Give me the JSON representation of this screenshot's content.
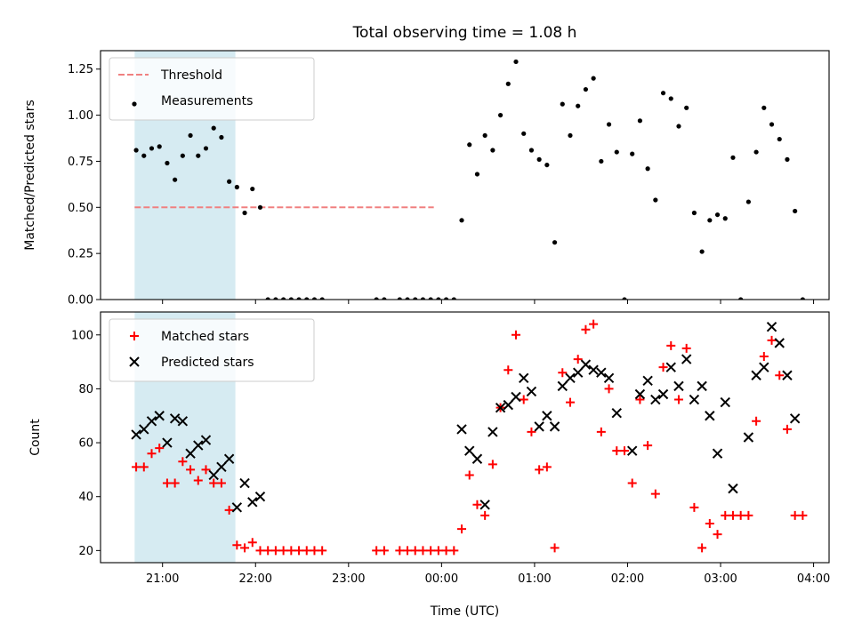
{
  "chart_data": [
    {
      "type": "scatter",
      "panel": "top",
      "title": "Total observing time = 1.08 h",
      "ylabel": "Matched/Predicted stars",
      "xlabel": "",
      "ylim": [
        0,
        1.35
      ],
      "yticks": [
        0.0,
        0.25,
        0.5,
        0.75,
        1.0,
        1.25
      ],
      "ytick_labels": [
        "0.00",
        "0.25",
        "0.50",
        "0.75",
        "1.00",
        "1.25"
      ],
      "shaded_span": {
        "start": "20:42",
        "end": "21:47"
      },
      "threshold": {
        "name": "Threshold",
        "value": 0.5,
        "start": "20:42",
        "end": "23:55",
        "color": "#f08080"
      },
      "legend_position": "upper-left",
      "series": [
        {
          "name": "Measurements",
          "color": "#000000",
          "marker": "dot",
          "points": [
            [
              "20:43",
              0.81
            ],
            [
              "20:48",
              0.78
            ],
            [
              "20:53",
              0.82
            ],
            [
              "20:58",
              0.83
            ],
            [
              "21:03",
              0.74
            ],
            [
              "21:08",
              0.65
            ],
            [
              "21:13",
              0.78
            ],
            [
              "21:18",
              0.89
            ],
            [
              "21:23",
              0.78
            ],
            [
              "21:28",
              0.82
            ],
            [
              "21:33",
              0.93
            ],
            [
              "21:38",
              0.88
            ],
            [
              "21:43",
              0.64
            ],
            [
              "21:48",
              0.61
            ],
            [
              "21:53",
              0.47
            ],
            [
              "21:58",
              0.6
            ],
            [
              "22:03",
              0.5
            ],
            [
              "22:08",
              0.0
            ],
            [
              "22:13",
              0.0
            ],
            [
              "22:18",
              0.0
            ],
            [
              "22:23",
              0.0
            ],
            [
              "22:28",
              0.0
            ],
            [
              "22:33",
              0.0
            ],
            [
              "22:38",
              0.0
            ],
            [
              "22:43",
              0.0
            ],
            [
              "23:18",
              0.0
            ],
            [
              "23:23",
              0.0
            ],
            [
              "23:33",
              0.0
            ],
            [
              "23:38",
              0.0
            ],
            [
              "23:43",
              0.0
            ],
            [
              "23:48",
              0.0
            ],
            [
              "23:53",
              0.0
            ],
            [
              "23:58",
              0.0
            ],
            [
              "00:03",
              0.0
            ],
            [
              "00:08",
              0.0
            ],
            [
              "00:13",
              0.43
            ],
            [
              "00:18",
              0.84
            ],
            [
              "00:23",
              0.68
            ],
            [
              "00:28",
              0.89
            ],
            [
              "00:33",
              0.81
            ],
            [
              "00:38",
              1.0
            ],
            [
              "00:43",
              1.17
            ],
            [
              "00:48",
              1.29
            ],
            [
              "00:53",
              0.9
            ],
            [
              "00:58",
              0.81
            ],
            [
              "01:03",
              0.76
            ],
            [
              "01:08",
              0.73
            ],
            [
              "01:13",
              0.31
            ],
            [
              "01:18",
              1.06
            ],
            [
              "01:23",
              0.89
            ],
            [
              "01:28",
              1.05
            ],
            [
              "01:33",
              1.14
            ],
            [
              "01:38",
              1.2
            ],
            [
              "01:43",
              0.75
            ],
            [
              "01:48",
              0.95
            ],
            [
              "01:53",
              0.8
            ],
            [
              "01:58",
              0.0
            ],
            [
              "02:03",
              0.79
            ],
            [
              "02:08",
              0.97
            ],
            [
              "02:13",
              0.71
            ],
            [
              "02:18",
              0.54
            ],
            [
              "02:23",
              1.12
            ],
            [
              "02:28",
              1.09
            ],
            [
              "02:33",
              0.94
            ],
            [
              "02:38",
              1.04
            ],
            [
              "02:43",
              0.47
            ],
            [
              "02:48",
              0.26
            ],
            [
              "02:53",
              0.43
            ],
            [
              "02:58",
              0.46
            ],
            [
              "03:03",
              0.44
            ],
            [
              "03:08",
              0.77
            ],
            [
              "03:13",
              0.0
            ],
            [
              "03:18",
              0.53
            ],
            [
              "03:23",
              0.8
            ],
            [
              "03:28",
              1.04
            ],
            [
              "03:33",
              0.95
            ],
            [
              "03:38",
              0.87
            ],
            [
              "03:43",
              0.76
            ],
            [
              "03:48",
              0.48
            ],
            [
              "03:53",
              0.0
            ]
          ]
        }
      ]
    },
    {
      "type": "scatter",
      "panel": "bottom",
      "title": "",
      "ylabel": "Count",
      "xlabel": "Time (UTC)",
      "ylim": [
        15.5,
        108.5
      ],
      "yticks": [
        20,
        40,
        60,
        80,
        100
      ],
      "ytick_labels": [
        "20",
        "40",
        "60",
        "80",
        "100"
      ],
      "xlim": [
        "20:20",
        "04:10"
      ],
      "xticks": [
        "21:00",
        "22:00",
        "23:00",
        "00:00",
        "01:00",
        "02:00",
        "03:00",
        "04:00"
      ],
      "xtick_labels": [
        "21:00",
        "22:00",
        "23:00",
        "00:00",
        "01:00",
        "02:00",
        "03:00",
        "04:00"
      ],
      "shaded_span": {
        "start": "20:42",
        "end": "21:47"
      },
      "legend_position": "upper-left",
      "series": [
        {
          "name": "Matched stars",
          "color": "#ff0000",
          "marker": "plus",
          "points": [
            [
              "20:43",
              51
            ],
            [
              "20:48",
              51
            ],
            [
              "20:53",
              56
            ],
            [
              "20:58",
              58
            ],
            [
              "21:03",
              45
            ],
            [
              "21:08",
              45
            ],
            [
              "21:13",
              53
            ],
            [
              "21:18",
              50
            ],
            [
              "21:23",
              46
            ],
            [
              "21:28",
              50
            ],
            [
              "21:33",
              45
            ],
            [
              "21:38",
              45
            ],
            [
              "21:43",
              35
            ],
            [
              "21:48",
              22
            ],
            [
              "21:53",
              21
            ],
            [
              "21:58",
              23
            ],
            [
              "22:03",
              20
            ],
            [
              "22:08",
              20
            ],
            [
              "22:13",
              20
            ],
            [
              "22:18",
              20
            ],
            [
              "22:23",
              20
            ],
            [
              "22:28",
              20
            ],
            [
              "22:33",
              20
            ],
            [
              "22:38",
              20
            ],
            [
              "22:43",
              20
            ],
            [
              "23:18",
              20
            ],
            [
              "23:23",
              20
            ],
            [
              "23:33",
              20
            ],
            [
              "23:38",
              20
            ],
            [
              "23:43",
              20
            ],
            [
              "23:48",
              20
            ],
            [
              "23:53",
              20
            ],
            [
              "23:58",
              20
            ],
            [
              "00:03",
              20
            ],
            [
              "00:08",
              20
            ],
            [
              "00:13",
              28
            ],
            [
              "00:18",
              48
            ],
            [
              "00:23",
              37
            ],
            [
              "00:28",
              33
            ],
            [
              "00:33",
              52
            ],
            [
              "00:38",
              73
            ],
            [
              "00:43",
              87
            ],
            [
              "00:48",
              100
            ],
            [
              "00:53",
              76
            ],
            [
              "00:58",
              64
            ],
            [
              "01:03",
              50
            ],
            [
              "01:08",
              51
            ],
            [
              "01:13",
              21
            ],
            [
              "01:18",
              86
            ],
            [
              "01:23",
              75
            ],
            [
              "01:28",
              91
            ],
            [
              "01:33",
              102
            ],
            [
              "01:38",
              104
            ],
            [
              "01:43",
              64
            ],
            [
              "01:48",
              80
            ],
            [
              "01:53",
              57
            ],
            [
              "01:58",
              57
            ],
            [
              "02:03",
              45
            ],
            [
              "02:08",
              76
            ],
            [
              "02:13",
              59
            ],
            [
              "02:18",
              41
            ],
            [
              "02:23",
              88
            ],
            [
              "02:28",
              96
            ],
            [
              "02:33",
              76
            ],
            [
              "02:38",
              95
            ],
            [
              "02:43",
              36
            ],
            [
              "02:48",
              21
            ],
            [
              "02:53",
              30
            ],
            [
              "02:58",
              26
            ],
            [
              "03:03",
              33
            ],
            [
              "03:08",
              33
            ],
            [
              "03:13",
              33
            ],
            [
              "03:18",
              33
            ],
            [
              "03:23",
              68
            ],
            [
              "03:28",
              92
            ],
            [
              "03:33",
              98
            ],
            [
              "03:38",
              85
            ],
            [
              "03:43",
              65
            ],
            [
              "03:48",
              33
            ],
            [
              "03:53",
              33
            ]
          ]
        },
        {
          "name": "Predicted stars",
          "color": "#000000",
          "marker": "x",
          "points": [
            [
              "20:43",
              63
            ],
            [
              "20:48",
              65
            ],
            [
              "20:53",
              68
            ],
            [
              "20:58",
              70
            ],
            [
              "21:03",
              60
            ],
            [
              "21:08",
              69
            ],
            [
              "21:13",
              68
            ],
            [
              "21:18",
              56
            ],
            [
              "21:23",
              59
            ],
            [
              "21:28",
              61
            ],
            [
              "21:33",
              48
            ],
            [
              "21:38",
              51
            ],
            [
              "21:43",
              54
            ],
            [
              "21:48",
              36
            ],
            [
              "21:53",
              45
            ],
            [
              "21:58",
              38
            ],
            [
              "22:03",
              40
            ],
            [
              "00:13",
              65
            ],
            [
              "00:18",
              57
            ],
            [
              "00:23",
              54
            ],
            [
              "00:28",
              37
            ],
            [
              "00:33",
              64
            ],
            [
              "00:38",
              73
            ],
            [
              "00:43",
              74
            ],
            [
              "00:48",
              77
            ],
            [
              "00:53",
              84
            ],
            [
              "00:58",
              79
            ],
            [
              "01:03",
              66
            ],
            [
              "01:08",
              70
            ],
            [
              "01:13",
              66
            ],
            [
              "01:18",
              81
            ],
            [
              "01:23",
              84
            ],
            [
              "01:28",
              86
            ],
            [
              "01:33",
              89
            ],
            [
              "01:38",
              87
            ],
            [
              "01:43",
              86
            ],
            [
              "01:48",
              84
            ],
            [
              "01:53",
              71
            ],
            [
              "02:03",
              57
            ],
            [
              "02:08",
              78
            ],
            [
              "02:13",
              83
            ],
            [
              "02:18",
              76
            ],
            [
              "02:23",
              78
            ],
            [
              "02:28",
              88
            ],
            [
              "02:33",
              81
            ],
            [
              "02:38",
              91
            ],
            [
              "02:43",
              76
            ],
            [
              "02:48",
              81
            ],
            [
              "02:53",
              70
            ],
            [
              "02:58",
              56
            ],
            [
              "03:03",
              75
            ],
            [
              "03:08",
              43
            ],
            [
              "03:18",
              62
            ],
            [
              "03:23",
              85
            ],
            [
              "03:28",
              88
            ],
            [
              "03:33",
              103
            ],
            [
              "03:38",
              97
            ],
            [
              "03:43",
              85
            ],
            [
              "03:48",
              69
            ]
          ]
        }
      ]
    }
  ]
}
